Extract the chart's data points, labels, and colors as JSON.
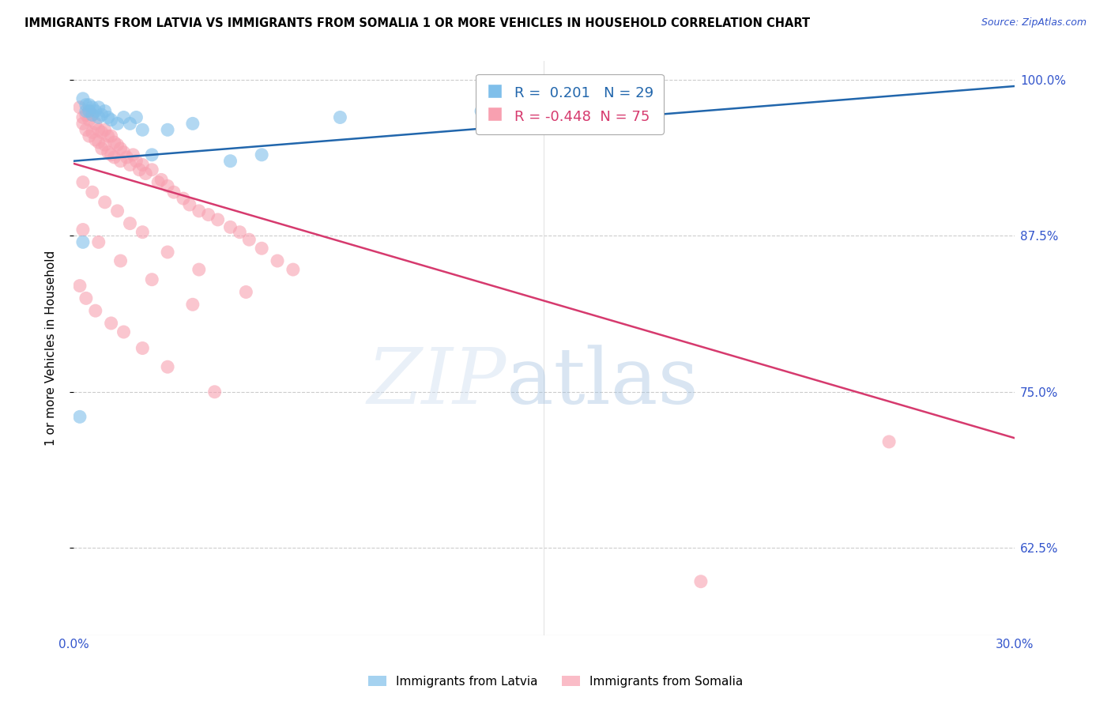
{
  "title": "IMMIGRANTS FROM LATVIA VS IMMIGRANTS FROM SOMALIA 1 OR MORE VEHICLES IN HOUSEHOLD CORRELATION CHART",
  "source": "Source: ZipAtlas.com",
  "ylabel": "1 or more Vehicles in Household",
  "xlim": [
    0.0,
    0.3
  ],
  "ylim": [
    0.555,
    1.015
  ],
  "xticks": [
    0.0,
    0.05,
    0.1,
    0.15,
    0.2,
    0.25,
    0.3
  ],
  "xticklabels": [
    "0.0%",
    "",
    "",
    "",
    "",
    "",
    "30.0%"
  ],
  "ytick_positions": [
    0.625,
    0.75,
    0.875,
    1.0
  ],
  "ytick_labels": [
    "62.5%",
    "75.0%",
    "87.5%",
    "100.0%"
  ],
  "legend_r_latvia": " 0.201",
  "legend_n_latvia": "29",
  "legend_r_somalia": "-0.448",
  "legend_n_somalia": "75",
  "color_latvia": "#7fbfea",
  "color_somalia": "#f8a0b0",
  "color_trend_latvia": "#2166ac",
  "color_trend_somalia": "#d63a6e",
  "latvia_x": [
    0.003,
    0.004,
    0.004,
    0.005,
    0.005,
    0.006,
    0.006,
    0.007,
    0.008,
    0.008,
    0.009,
    0.01,
    0.011,
    0.012,
    0.014,
    0.016,
    0.018,
    0.02,
    0.022,
    0.025,
    0.03,
    0.038,
    0.05,
    0.06,
    0.085,
    0.13,
    0.16,
    0.002,
    0.003
  ],
  "latvia_y": [
    0.985,
    0.98,
    0.975,
    0.98,
    0.975,
    0.978,
    0.972,
    0.975,
    0.978,
    0.97,
    0.972,
    0.975,
    0.97,
    0.968,
    0.965,
    0.97,
    0.965,
    0.97,
    0.96,
    0.94,
    0.96,
    0.965,
    0.935,
    0.94,
    0.97,
    0.975,
    0.975,
    0.73,
    0.87
  ],
  "somalia_x": [
    0.002,
    0.003,
    0.003,
    0.004,
    0.004,
    0.005,
    0.005,
    0.005,
    0.006,
    0.006,
    0.007,
    0.007,
    0.008,
    0.008,
    0.009,
    0.009,
    0.01,
    0.01,
    0.011,
    0.011,
    0.012,
    0.012,
    0.013,
    0.013,
    0.014,
    0.015,
    0.015,
    0.016,
    0.017,
    0.018,
    0.019,
    0.02,
    0.021,
    0.022,
    0.023,
    0.025,
    0.027,
    0.028,
    0.03,
    0.032,
    0.035,
    0.037,
    0.04,
    0.043,
    0.046,
    0.05,
    0.053,
    0.056,
    0.06,
    0.065,
    0.07,
    0.003,
    0.006,
    0.01,
    0.014,
    0.018,
    0.022,
    0.03,
    0.04,
    0.055,
    0.002,
    0.004,
    0.007,
    0.012,
    0.016,
    0.022,
    0.03,
    0.045,
    0.003,
    0.008,
    0.015,
    0.025,
    0.038,
    0.2,
    0.26
  ],
  "somalia_y": [
    0.978,
    0.97,
    0.965,
    0.972,
    0.96,
    0.975,
    0.968,
    0.955,
    0.972,
    0.958,
    0.965,
    0.952,
    0.96,
    0.95,
    0.958,
    0.945,
    0.96,
    0.948,
    0.955,
    0.942,
    0.955,
    0.94,
    0.95,
    0.938,
    0.948,
    0.945,
    0.935,
    0.942,
    0.938,
    0.932,
    0.94,
    0.935,
    0.928,
    0.932,
    0.925,
    0.928,
    0.918,
    0.92,
    0.915,
    0.91,
    0.905,
    0.9,
    0.895,
    0.892,
    0.888,
    0.882,
    0.878,
    0.872,
    0.865,
    0.855,
    0.848,
    0.918,
    0.91,
    0.902,
    0.895,
    0.885,
    0.878,
    0.862,
    0.848,
    0.83,
    0.835,
    0.825,
    0.815,
    0.805,
    0.798,
    0.785,
    0.77,
    0.75,
    0.88,
    0.87,
    0.855,
    0.84,
    0.82,
    0.598,
    0.71
  ]
}
